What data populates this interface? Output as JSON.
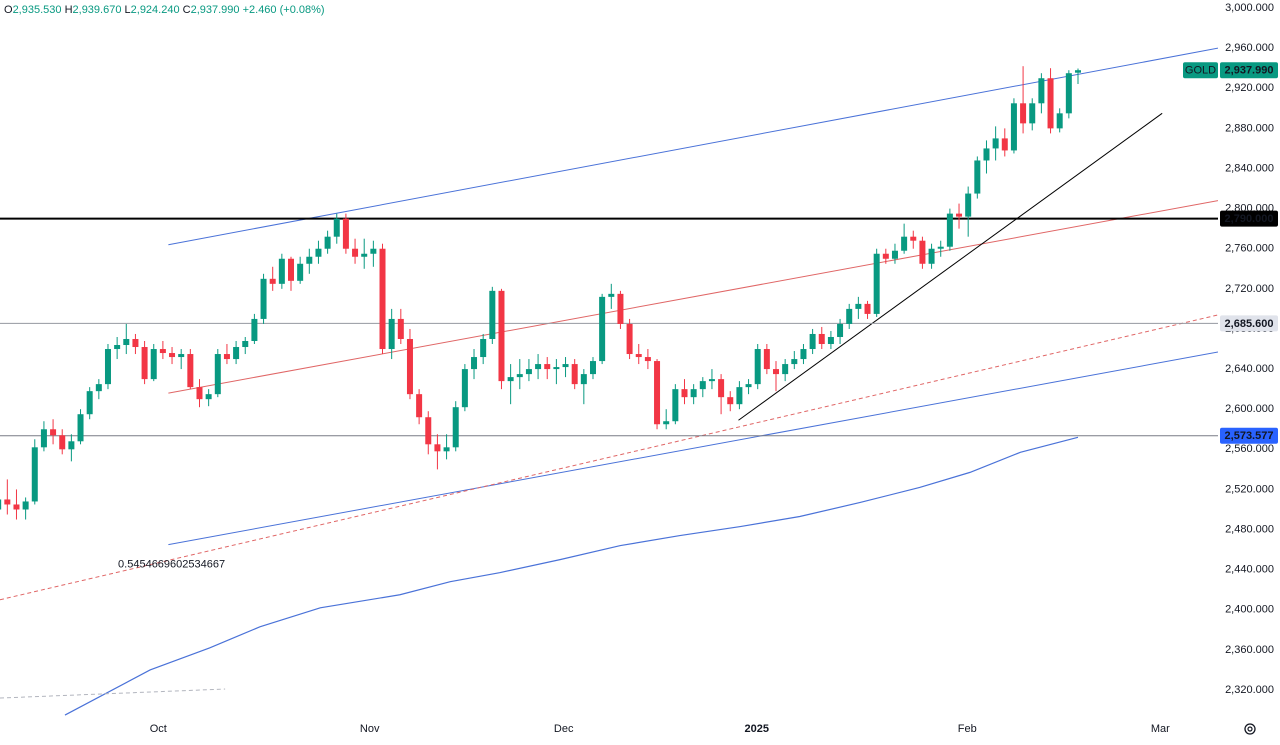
{
  "chart_data": {
    "type": "candlestick",
    "symbol": "GOLD",
    "header": [
      "O",
      "2,935.530",
      "H",
      "2,939.670",
      "L",
      "2,924.240",
      "C",
      "2,937.990",
      "+2.460 (+0.08%)"
    ],
    "up_color": "#089981",
    "down_color": "#f23645",
    "xlim": [
      0.2,
      133.3
    ],
    "xticks": [
      {
        "value": 17.5,
        "label": "Oct"
      },
      {
        "value": 40.6,
        "label": "Nov"
      },
      {
        "value": 61.8,
        "label": "Dec"
      },
      {
        "value": 82.9,
        "label": "2025"
      },
      {
        "value": 105.9,
        "label": "Feb"
      },
      {
        "value": 127.0,
        "label": "Mar"
      }
    ],
    "ylim": [
      2292.1,
      3008.0
    ],
    "yticks": [
      {
        "value": 2320,
        "label": "2,320.000"
      },
      {
        "value": 2360,
        "label": "2,360.000"
      },
      {
        "value": 2400,
        "label": "2,400.000"
      },
      {
        "value": 2440,
        "label": "2,440.000"
      },
      {
        "value": 2480,
        "label": "2,480.000"
      },
      {
        "value": 2520,
        "label": "2,520.000"
      },
      {
        "value": 2560,
        "label": "2,560.000"
      },
      {
        "value": 2600,
        "label": "2,600.000"
      },
      {
        "value": 2640,
        "label": "2,640.000"
      },
      {
        "value": 2680,
        "label": "2,680.000"
      },
      {
        "value": 2720,
        "label": "2,720.000"
      },
      {
        "value": 2760,
        "label": "2,760.000"
      },
      {
        "value": 2800,
        "label": "2,800.000"
      },
      {
        "value": 2840,
        "label": "2,840.000"
      },
      {
        "value": 2880,
        "label": "2,880.000"
      },
      {
        "value": 2920,
        "label": "2,920.000"
      },
      {
        "value": 2960,
        "label": "2,960.000"
      },
      {
        "value": 3000,
        "label": "3,000.000"
      }
    ],
    "last_price": {
      "value": 2937.99,
      "label": "2,937.990"
    },
    "hlines": [
      {
        "value": 2790,
        "label": "2,790.000",
        "color": "#000000",
        "width": 2,
        "tag_bg": "#000000",
        "tag_fg": "#ffffff"
      },
      {
        "value": 2685.6,
        "label": "2,685.600",
        "color": "#9598a1",
        "width": 1,
        "tag_bg": "#e0e3eb",
        "tag_fg": "#131722"
      },
      {
        "value": 2573.577,
        "label": "2,573.577",
        "color": "#787b86",
        "width": 1,
        "tag_bg": "#2962ff",
        "tag_fg": "#ffffff"
      }
    ],
    "lines": [
      {
        "x": [
          18.6,
          133.3
        ],
        "y": [
          2764,
          2960
        ],
        "color": "#4a72d8",
        "dash": false
      },
      {
        "x": [
          18.6,
          133.3
        ],
        "y": [
          2465,
          2657
        ],
        "color": "#4a72d8",
        "dash": false
      },
      {
        "x": [
          18.6,
          133.3
        ],
        "y": [
          2616,
          2808
        ],
        "color": "#e06666",
        "dash": false
      },
      {
        "x": [
          0.2,
          133.3
        ],
        "y": [
          2410,
          2694
        ],
        "color": "#e06666",
        "dash": true
      },
      {
        "x": [
          80.9,
          127.2
        ],
        "y": [
          2589,
          2895
        ],
        "color": "#000000",
        "dash": false
      },
      {
        "x": [
          0.2,
          24.8
        ],
        "y": [
          2312,
          2321
        ],
        "color": "#b2b5be",
        "dash": true
      }
    ],
    "annotation": {
      "text": "0.5454669602534667",
      "x": 13.1,
      "y": 2445,
      "color": "#4a72d8"
    },
    "ma": {
      "color": "#4a72d8",
      "x": [
        7.3,
        16.6,
        23.1,
        28.6,
        35.2,
        43.9,
        49.4,
        54.8,
        61.4,
        68.0,
        74.5,
        81.1,
        87.6,
        94.2,
        100.7,
        106.2,
        111.7,
        118
      ],
      "values": [
        2295,
        2340,
        2362,
        2383,
        2402,
        2415,
        2428,
        2437,
        2450,
        2464,
        2474,
        2483,
        2493,
        2507,
        2522,
        2537,
        2557,
        2572
      ]
    },
    "ohlc": [
      [
        2500,
        2515,
        2485,
        2510
      ],
      [
        2510,
        2530,
        2495,
        2505
      ],
      [
        2505,
        2520,
        2490,
        2500
      ],
      [
        2500,
        2512,
        2490,
        2508
      ],
      [
        2508,
        2570,
        2505,
        2562
      ],
      [
        2562,
        2588,
        2558,
        2580
      ],
      [
        2580,
        2590,
        2565,
        2574
      ],
      [
        2574,
        2580,
        2555,
        2560
      ],
      [
        2560,
        2575,
        2548,
        2568
      ],
      [
        2568,
        2600,
        2565,
        2595
      ],
      [
        2595,
        2622,
        2590,
        2618
      ],
      [
        2618,
        2630,
        2610,
        2625
      ],
      [
        2625,
        2665,
        2620,
        2660
      ],
      [
        2660,
        2672,
        2650,
        2664
      ],
      [
        2664,
        2685,
        2655,
        2670
      ],
      [
        2670,
        2675,
        2655,
        2662
      ],
      [
        2662,
        2668,
        2625,
        2630
      ],
      [
        2630,
        2665,
        2628,
        2660
      ],
      [
        2660,
        2668,
        2650,
        2656
      ],
      [
        2656,
        2662,
        2645,
        2652
      ],
      [
        2652,
        2660,
        2640,
        2655
      ],
      [
        2655,
        2660,
        2620,
        2622
      ],
      [
        2622,
        2630,
        2602,
        2610
      ],
      [
        2610,
        2620,
        2603,
        2615
      ],
      [
        2615,
        2660,
        2612,
        2655
      ],
      [
        2655,
        2665,
        2645,
        2650
      ],
      [
        2650,
        2668,
        2645,
        2662
      ],
      [
        2662,
        2672,
        2655,
        2668
      ],
      [
        2668,
        2695,
        2665,
        2690
      ],
      [
        2690,
        2735,
        2685,
        2730
      ],
      [
        2730,
        2742,
        2718,
        2725
      ],
      [
        2725,
        2755,
        2720,
        2750
      ],
      [
        2750,
        2752,
        2718,
        2728
      ],
      [
        2728,
        2752,
        2725,
        2745
      ],
      [
        2745,
        2760,
        2735,
        2752
      ],
      [
        2752,
        2768,
        2745,
        2760
      ],
      [
        2760,
        2778,
        2755,
        2772
      ],
      [
        2772,
        2795,
        2765,
        2790
      ],
      [
        2790,
        2795,
        2755,
        2760
      ],
      [
        2760,
        2770,
        2745,
        2752
      ],
      [
        2752,
        2770,
        2740,
        2755
      ],
      [
        2755,
        2768,
        2742,
        2760
      ],
      [
        2760,
        2765,
        2655,
        2660
      ],
      [
        2660,
        2700,
        2650,
        2690
      ],
      [
        2690,
        2700,
        2665,
        2670
      ],
      [
        2670,
        2680,
        2610,
        2615
      ],
      [
        2615,
        2620,
        2585,
        2592
      ],
      [
        2592,
        2598,
        2555,
        2565
      ],
      [
        2565,
        2575,
        2540,
        2558
      ],
      [
        2558,
        2575,
        2550,
        2562
      ],
      [
        2562,
        2608,
        2558,
        2602
      ],
      [
        2602,
        2645,
        2598,
        2640
      ],
      [
        2640,
        2660,
        2630,
        2652
      ],
      [
        2652,
        2675,
        2645,
        2670
      ],
      [
        2670,
        2722,
        2665,
        2718
      ],
      [
        2718,
        2720,
        2620,
        2628
      ],
      [
        2628,
        2645,
        2605,
        2632
      ],
      [
        2632,
        2650,
        2620,
        2635
      ],
      [
        2635,
        2650,
        2628,
        2640
      ],
      [
        2640,
        2655,
        2630,
        2645
      ],
      [
        2645,
        2652,
        2630,
        2640
      ],
      [
        2640,
        2650,
        2625,
        2642
      ],
      [
        2642,
        2652,
        2632,
        2645
      ],
      [
        2645,
        2650,
        2620,
        2625
      ],
      [
        2625,
        2640,
        2605,
        2635
      ],
      [
        2635,
        2652,
        2630,
        2648
      ],
      [
        2648,
        2715,
        2645,
        2712
      ],
      [
        2712,
        2725,
        2700,
        2715
      ],
      [
        2715,
        2718,
        2680,
        2685
      ],
      [
        2685,
        2690,
        2650,
        2655
      ],
      [
        2655,
        2665,
        2645,
        2652
      ],
      [
        2652,
        2660,
        2640,
        2648
      ],
      [
        2648,
        2650,
        2580,
        2585
      ],
      [
        2585,
        2600,
        2580,
        2588
      ],
      [
        2588,
        2625,
        2585,
        2620
      ],
      [
        2620,
        2630,
        2605,
        2612
      ],
      [
        2612,
        2625,
        2605,
        2620
      ],
      [
        2620,
        2632,
        2612,
        2628
      ],
      [
        2628,
        2640,
        2620,
        2630
      ],
      [
        2630,
        2635,
        2595,
        2612
      ],
      [
        2612,
        2618,
        2598,
        2605
      ],
      [
        2605,
        2628,
        2600,
        2622
      ],
      [
        2622,
        2630,
        2615,
        2625
      ],
      [
        2625,
        2665,
        2620,
        2660
      ],
      [
        2660,
        2665,
        2635,
        2640
      ],
      [
        2640,
        2648,
        2618,
        2635
      ],
      [
        2635,
        2650,
        2628,
        2645
      ],
      [
        2645,
        2658,
        2640,
        2650
      ],
      [
        2650,
        2665,
        2645,
        2660
      ],
      [
        2660,
        2680,
        2655,
        2675
      ],
      [
        2675,
        2682,
        2660,
        2665
      ],
      [
        2665,
        2678,
        2660,
        2672
      ],
      [
        2672,
        2690,
        2665,
        2685
      ],
      [
        2685,
        2705,
        2680,
        2700
      ],
      [
        2700,
        2712,
        2690,
        2705
      ],
      [
        2705,
        2708,
        2690,
        2695
      ],
      [
        2695,
        2760,
        2692,
        2755
      ],
      [
        2755,
        2760,
        2745,
        2750
      ],
      [
        2750,
        2765,
        2745,
        2758
      ],
      [
        2758,
        2785,
        2755,
        2772
      ],
      [
        2772,
        2778,
        2760,
        2768
      ],
      [
        2768,
        2772,
        2740,
        2745
      ],
      [
        2745,
        2765,
        2740,
        2760
      ],
      [
        2760,
        2768,
        2752,
        2762
      ],
      [
        2762,
        2800,
        2758,
        2795
      ],
      [
        2795,
        2805,
        2780,
        2792
      ],
      [
        2792,
        2822,
        2772,
        2815
      ],
      [
        2815,
        2852,
        2810,
        2848
      ],
      [
        2848,
        2868,
        2835,
        2860
      ],
      [
        2860,
        2882,
        2848,
        2870
      ],
      [
        2870,
        2880,
        2852,
        2858
      ],
      [
        2858,
        2910,
        2855,
        2905
      ],
      [
        2905,
        2942,
        2875,
        2885
      ],
      [
        2885,
        2910,
        2878,
        2905
      ],
      [
        2905,
        2935,
        2895,
        2930
      ],
      [
        2930,
        2940,
        2875,
        2880
      ],
      [
        2880,
        2900,
        2876,
        2895
      ],
      [
        2895,
        2938,
        2890,
        2935
      ],
      [
        2935.53,
        2939.67,
        2924.24,
        2937.99
      ]
    ]
  }
}
